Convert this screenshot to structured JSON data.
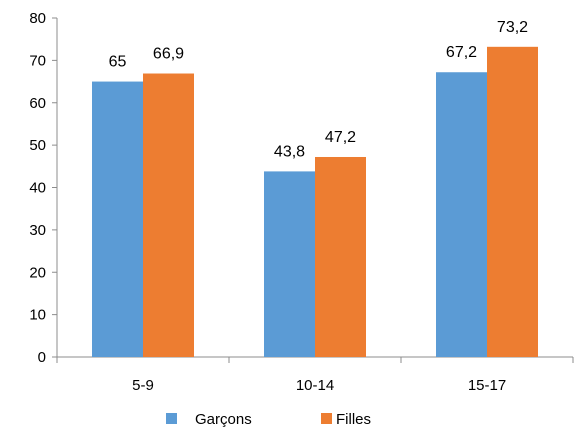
{
  "chart_data": {
    "type": "bar",
    "categories": [
      "5-9",
      "10-14",
      "15-17"
    ],
    "series": [
      {
        "name": "Garçons",
        "values": [
          65,
          43.8,
          67.2
        ],
        "labels": [
          "65",
          "43,8",
          "67,2"
        ],
        "color": "#5B9BD5"
      },
      {
        "name": "Filles",
        "values": [
          66.9,
          47.2,
          73.2
        ],
        "labels": [
          "66,9",
          "47,2",
          "73,2"
        ],
        "color": "#ED7D31"
      }
    ],
    "ylim": [
      0,
      80
    ],
    "yticks": [
      "0",
      "10",
      "20",
      "30",
      "40",
      "50",
      "60",
      "70",
      "80"
    ],
    "grid": false,
    "legend": "bottom",
    "title": "",
    "xlabel": "",
    "ylabel": ""
  }
}
